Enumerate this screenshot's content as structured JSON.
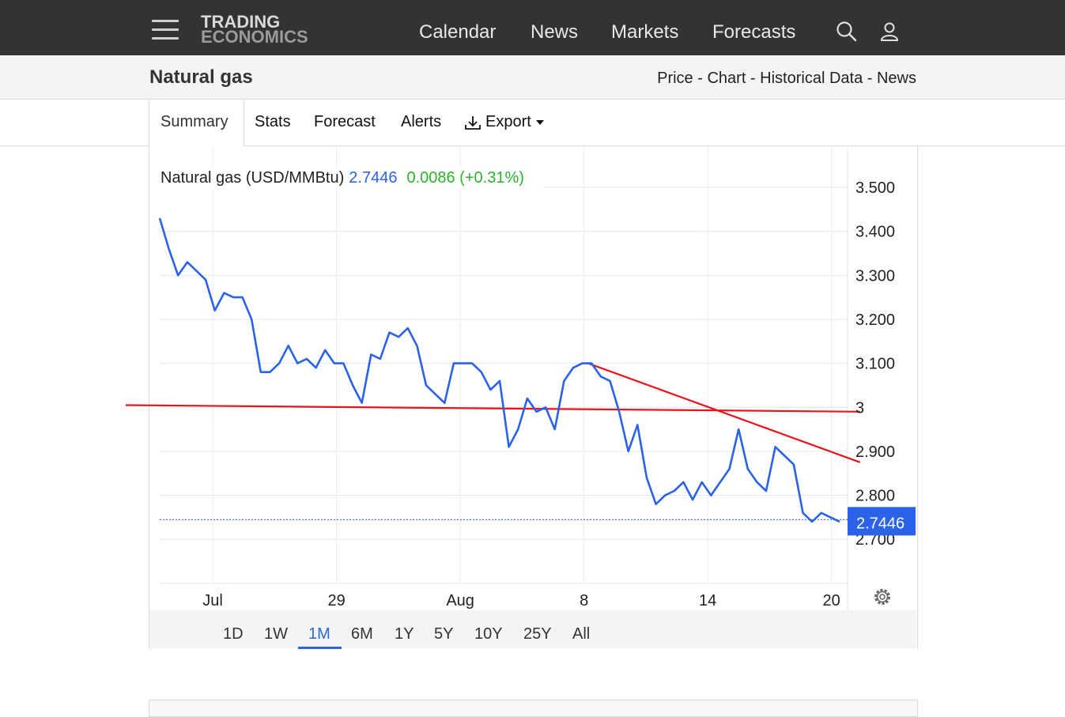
{
  "header": {
    "logo_line1": "TRADING",
    "logo_line2": "ECONOMICS",
    "nav": [
      "Calendar",
      "News",
      "Markets",
      "Forecasts"
    ]
  },
  "subheader": {
    "title": "Natural gas",
    "crumbs": [
      "Price",
      "Chart",
      "Historical Data",
      "News"
    ],
    "separator": " - "
  },
  "tabs": [
    "Summary",
    "Stats",
    "Forecast",
    "Alerts",
    "Export"
  ],
  "legend": {
    "name": "Natural gas (USD/MMBtu)",
    "price": "2.7446",
    "change": "0.0086 (+0.31%)"
  },
  "colors": {
    "line": "#2a62e8",
    "trend": "#e8141c",
    "change": "#2bb32b",
    "price_tag": "#2a62e8",
    "header_bg": "#333333"
  },
  "ranges": [
    "1D",
    "1W",
    "1M",
    "6M",
    "1Y",
    "5Y",
    "10Y",
    "25Y",
    "All"
  ],
  "active_range": "1M",
  "chart_data": {
    "type": "line",
    "title": "",
    "ylabel": "USD/MMBtu",
    "ylim": [
      2.62,
      3.56
    ],
    "y_ticks": [
      "2.700",
      "2.800",
      "2.900",
      "3",
      "3.100",
      "3.200",
      "3.300",
      "3.400",
      "3.500"
    ],
    "x_ticks": [
      "Jul",
      "29",
      "Aug",
      "8",
      "14",
      "20"
    ],
    "current_value": 2.7446,
    "current_label": "2.7446",
    "series": [
      {
        "values": [
          3.43,
          3.36,
          3.3,
          3.33,
          3.31,
          3.29,
          3.22,
          3.26,
          3.25,
          3.25,
          3.2,
          3.08,
          3.08,
          3.1,
          3.14,
          3.1,
          3.11,
          3.09,
          3.13,
          3.1,
          3.1,
          3.05,
          3.01,
          3.12,
          3.11,
          3.17,
          3.16,
          3.18,
          3.14,
          3.05,
          3.03,
          3.01,
          3.1,
          3.1,
          3.1,
          3.08,
          3.04,
          3.06,
          2.91,
          2.95,
          3.02,
          2.99,
          3.0,
          2.95,
          3.06,
          3.09,
          3.1,
          3.1,
          3.07,
          3.06,
          2.99,
          2.9,
          2.96,
          2.84,
          2.78,
          2.8,
          2.81,
          2.83,
          2.79,
          2.83,
          2.8,
          2.83,
          2.86,
          2.95,
          2.86,
          2.83,
          2.81,
          2.91,
          2.89,
          2.87,
          2.76,
          2.74,
          2.76,
          2.75,
          2.74
        ]
      }
    ],
    "trendlines": [
      {
        "from": [
          -0.05,
          3.005
        ],
        "to": [
          1.03,
          2.99
        ]
      },
      {
        "from": [
          0.63,
          3.1
        ],
        "to": [
          1.03,
          2.875
        ]
      }
    ]
  }
}
